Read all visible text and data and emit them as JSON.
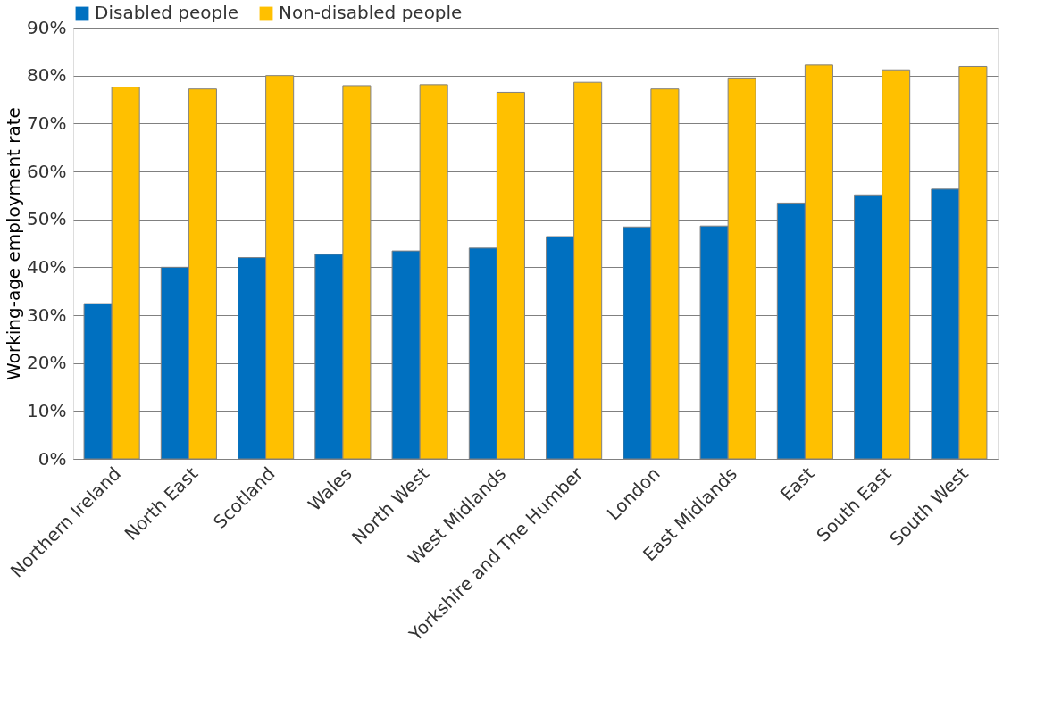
{
  "chart_data": {
    "type": "bar",
    "ylabel": "Working-age employment rate",
    "categories": [
      "Northern Ireland",
      "North East",
      "Scotland",
      "Wales",
      "North West",
      "West Midlands",
      "Yorkshire and The Humber",
      "London",
      "East Midlands",
      "East",
      "South East",
      "South West"
    ],
    "series": [
      {
        "name": "Disabled people",
        "color": "#0070c0",
        "values": [
          32.4,
          40.0,
          42.0,
          42.7,
          43.4,
          44.0,
          46.4,
          48.4,
          48.6,
          53.4,
          55.1,
          56.3
        ]
      },
      {
        "name": "Non-disabled people",
        "color": "#ffc000",
        "values": [
          77.6,
          77.2,
          80.0,
          77.9,
          78.1,
          76.5,
          78.6,
          77.2,
          79.5,
          82.2,
          81.2,
          81.9
        ]
      }
    ],
    "ylim": [
      0,
      90
    ],
    "yticks": [
      {
        "value": 0,
        "label": "0%"
      },
      {
        "value": 10,
        "label": "10%"
      },
      {
        "value": 20,
        "label": "20%"
      },
      {
        "value": 30,
        "label": "30%"
      },
      {
        "value": 40,
        "label": "40%"
      },
      {
        "value": 50,
        "label": "50%"
      },
      {
        "value": 60,
        "label": "60%"
      },
      {
        "value": 70,
        "label": "70%"
      },
      {
        "value": 80,
        "label": "80%"
      },
      {
        "value": 90,
        "label": "90%"
      }
    ],
    "grid": "y",
    "legend": "top left"
  }
}
